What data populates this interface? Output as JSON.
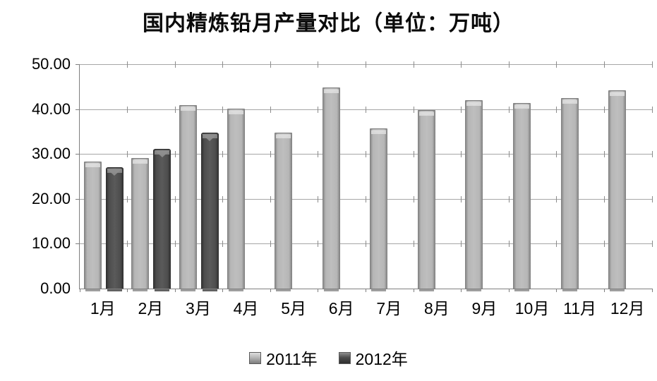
{
  "title": "国内精炼铅月产量对比（单位：万吨）",
  "chart_data": {
    "type": "bar",
    "title": "国内精炼铅月产量对比（单位：万吨）",
    "unit": "万吨",
    "categories": [
      "1月",
      "2月",
      "3月",
      "4月",
      "5月",
      "6月",
      "7月",
      "8月",
      "9月",
      "10月",
      "11月",
      "12月"
    ],
    "series": [
      {
        "name": "2011年",
        "color": "#b6b6b6",
        "edge_color": "#7d7d7d",
        "highlight_color": "#dedede",
        "values": [
          28.1,
          29.0,
          40.8,
          40.0,
          34.6,
          44.7,
          35.6,
          39.6,
          41.8,
          41.2,
          42.3,
          44.0
        ]
      },
      {
        "name": "2012年",
        "color": "#4d4d4d",
        "edge_color": "#2e2e2e",
        "highlight_color": "#8f8f8f",
        "values": [
          26.9,
          30.9,
          34.6,
          null,
          null,
          null,
          null,
          null,
          null,
          null,
          null,
          null
        ]
      }
    ],
    "ylim": [
      0,
      50
    ],
    "y_tick_labels": [
      "50.00",
      "40.00",
      "30.00",
      "20.00",
      "10.00",
      "0.00"
    ],
    "grid": "horizontal",
    "legend_position": "bottom",
    "colors": {
      "gridline": "#a6a6a6",
      "axis": "#7f7f7f",
      "background": "#ffffff",
      "text": "#000000"
    }
  }
}
